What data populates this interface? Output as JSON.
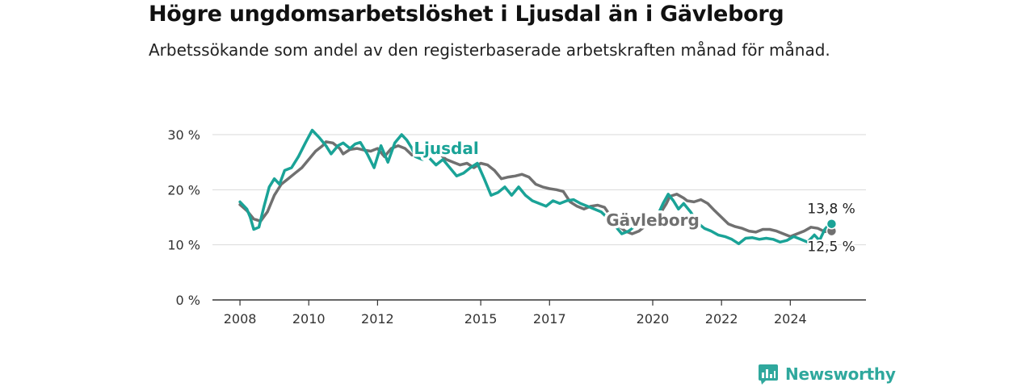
{
  "title": "Högre ungdomsarbetslöshet i Ljusdal än i Gävleborg",
  "subtitle": "Arbetssökande som andel av den registerbaserade arbetskraften månad för månad.",
  "brand": {
    "name": "Newsworthy",
    "color": "#2fa89d"
  },
  "chart_data": {
    "type": "line",
    "x_unit": "year (decimal)",
    "xlim": [
      2007.2,
      2026.2
    ],
    "ylim": [
      0,
      30
    ],
    "y_ticks": [
      0,
      10,
      20,
      30
    ],
    "y_tick_labels": [
      "0 %",
      "10 %",
      "20 %",
      "30 %"
    ],
    "x_ticks": [
      2008,
      2010,
      2012,
      2015,
      2017,
      2020,
      2022,
      2024
    ],
    "x_tick_labels": [
      "2008",
      "2010",
      "2012",
      "2015",
      "2017",
      "2020",
      "2022",
      "2024"
    ],
    "grid": true,
    "series": [
      {
        "name": "Gävleborg",
        "color": "#707070",
        "end_label": "12,5 %",
        "points": [
          [
            2008.0,
            17.3
          ],
          [
            2008.2,
            16.2
          ],
          [
            2008.4,
            14.7
          ],
          [
            2008.6,
            14.3
          ],
          [
            2008.8,
            16.0
          ],
          [
            2009.0,
            19.0
          ],
          [
            2009.2,
            21.0
          ],
          [
            2009.4,
            22.0
          ],
          [
            2009.6,
            23.0
          ],
          [
            2009.8,
            24.0
          ],
          [
            2010.0,
            25.5
          ],
          [
            2010.2,
            27.0
          ],
          [
            2010.4,
            28.0
          ],
          [
            2010.5,
            28.7
          ],
          [
            2010.7,
            28.5
          ],
          [
            2010.9,
            27.5
          ],
          [
            2011.0,
            26.5
          ],
          [
            2011.2,
            27.3
          ],
          [
            2011.4,
            27.5
          ],
          [
            2011.6,
            27.2
          ],
          [
            2011.8,
            27.0
          ],
          [
            2012.0,
            27.5
          ],
          [
            2012.2,
            26.0
          ],
          [
            2012.4,
            27.5
          ],
          [
            2012.6,
            28.0
          ],
          [
            2012.8,
            27.5
          ],
          [
            2013.0,
            26.3
          ],
          [
            2013.2,
            27.0
          ],
          [
            2013.5,
            27.5
          ],
          [
            2013.8,
            26.5
          ],
          [
            2014.0,
            25.5
          ],
          [
            2014.2,
            25.0
          ],
          [
            2014.4,
            24.5
          ],
          [
            2014.6,
            24.8
          ],
          [
            2014.8,
            24.0
          ],
          [
            2015.0,
            24.8
          ],
          [
            2015.2,
            24.5
          ],
          [
            2015.4,
            23.5
          ],
          [
            2015.6,
            22.0
          ],
          [
            2015.8,
            22.3
          ],
          [
            2016.0,
            22.5
          ],
          [
            2016.2,
            22.8
          ],
          [
            2016.4,
            22.3
          ],
          [
            2016.6,
            21.0
          ],
          [
            2016.8,
            20.5
          ],
          [
            2017.0,
            20.2
          ],
          [
            2017.2,
            20.0
          ],
          [
            2017.4,
            19.7
          ],
          [
            2017.6,
            17.8
          ],
          [
            2017.8,
            17.0
          ],
          [
            2018.0,
            16.5
          ],
          [
            2018.2,
            17.0
          ],
          [
            2018.4,
            17.2
          ],
          [
            2018.6,
            16.8
          ],
          [
            2018.8,
            15.0
          ],
          [
            2019.0,
            13.5
          ],
          [
            2019.2,
            12.5
          ],
          [
            2019.4,
            12.0
          ],
          [
            2019.6,
            12.5
          ],
          [
            2019.8,
            13.5
          ],
          [
            2020.0,
            14.2
          ],
          [
            2020.2,
            15.5
          ],
          [
            2020.4,
            17.5
          ],
          [
            2020.5,
            18.8
          ],
          [
            2020.7,
            19.2
          ],
          [
            2020.9,
            18.5
          ],
          [
            2021.0,
            18.0
          ],
          [
            2021.2,
            17.8
          ],
          [
            2021.4,
            18.2
          ],
          [
            2021.6,
            17.5
          ],
          [
            2021.8,
            16.2
          ],
          [
            2022.0,
            15.0
          ],
          [
            2022.2,
            13.8
          ],
          [
            2022.4,
            13.3
          ],
          [
            2022.6,
            13.0
          ],
          [
            2022.8,
            12.5
          ],
          [
            2023.0,
            12.3
          ],
          [
            2023.2,
            12.8
          ],
          [
            2023.4,
            12.8
          ],
          [
            2023.6,
            12.5
          ],
          [
            2023.8,
            12.0
          ],
          [
            2024.0,
            11.5
          ],
          [
            2024.2,
            12.0
          ],
          [
            2024.4,
            12.5
          ],
          [
            2024.6,
            13.2
          ],
          [
            2024.8,
            13.0
          ],
          [
            2025.0,
            12.4
          ],
          [
            2025.2,
            12.5
          ]
        ]
      },
      {
        "name": "Ljusdal",
        "color": "#1aa397",
        "end_label": "13,8 %",
        "points": [
          [
            2008.0,
            17.8
          ],
          [
            2008.2,
            16.5
          ],
          [
            2008.3,
            15.0
          ],
          [
            2008.4,
            12.8
          ],
          [
            2008.55,
            13.2
          ],
          [
            2008.7,
            17.0
          ],
          [
            2008.85,
            20.5
          ],
          [
            2009.0,
            22.0
          ],
          [
            2009.15,
            21.0
          ],
          [
            2009.3,
            23.5
          ],
          [
            2009.5,
            24.0
          ],
          [
            2009.7,
            26.0
          ],
          [
            2009.9,
            28.5
          ],
          [
            2010.1,
            30.8
          ],
          [
            2010.3,
            29.5
          ],
          [
            2010.5,
            28.0
          ],
          [
            2010.65,
            26.5
          ],
          [
            2010.85,
            28.0
          ],
          [
            2011.0,
            28.5
          ],
          [
            2011.2,
            27.5
          ],
          [
            2011.35,
            28.3
          ],
          [
            2011.5,
            28.6
          ],
          [
            2011.7,
            26.5
          ],
          [
            2011.9,
            24.0
          ],
          [
            2012.1,
            28.0
          ],
          [
            2012.3,
            25.0
          ],
          [
            2012.5,
            28.5
          ],
          [
            2012.7,
            30.0
          ],
          [
            2012.85,
            29.0
          ],
          [
            2013.0,
            27.5
          ],
          [
            2013.1,
            26.0
          ],
          [
            2013.3,
            25.5
          ],
          [
            2013.5,
            25.8
          ],
          [
            2013.7,
            24.5
          ],
          [
            2013.9,
            25.5
          ],
          [
            2014.1,
            24.0
          ],
          [
            2014.3,
            22.5
          ],
          [
            2014.5,
            23.0
          ],
          [
            2014.7,
            24.0
          ],
          [
            2014.9,
            24.8
          ],
          [
            2015.1,
            22.0
          ],
          [
            2015.3,
            19.0
          ],
          [
            2015.5,
            19.5
          ],
          [
            2015.7,
            20.5
          ],
          [
            2015.9,
            19.0
          ],
          [
            2016.1,
            20.5
          ],
          [
            2016.3,
            19.0
          ],
          [
            2016.5,
            18.0
          ],
          [
            2016.7,
            17.5
          ],
          [
            2016.9,
            17.0
          ],
          [
            2017.1,
            18.0
          ],
          [
            2017.3,
            17.5
          ],
          [
            2017.5,
            18.0
          ],
          [
            2017.7,
            18.2
          ],
          [
            2017.9,
            17.5
          ],
          [
            2018.1,
            17.0
          ],
          [
            2018.3,
            16.5
          ],
          [
            2018.5,
            16.0
          ],
          [
            2018.7,
            14.8
          ],
          [
            2018.9,
            13.5
          ],
          [
            2019.1,
            12.0
          ],
          [
            2019.3,
            12.5
          ],
          [
            2019.5,
            13.5
          ],
          [
            2019.7,
            14.5
          ],
          [
            2019.9,
            15.0
          ],
          [
            2020.1,
            14.8
          ],
          [
            2020.3,
            17.5
          ],
          [
            2020.45,
            19.2
          ],
          [
            2020.6,
            18.0
          ],
          [
            2020.75,
            16.5
          ],
          [
            2020.9,
            17.5
          ],
          [
            2021.1,
            16.0
          ],
          [
            2021.3,
            14.0
          ],
          [
            2021.5,
            13.0
          ],
          [
            2021.7,
            12.5
          ],
          [
            2021.9,
            11.8
          ],
          [
            2022.1,
            11.5
          ],
          [
            2022.3,
            11.0
          ],
          [
            2022.5,
            10.2
          ],
          [
            2022.7,
            11.2
          ],
          [
            2022.9,
            11.3
          ],
          [
            2023.1,
            11.0
          ],
          [
            2023.3,
            11.2
          ],
          [
            2023.5,
            11.0
          ],
          [
            2023.7,
            10.5
          ],
          [
            2023.9,
            10.8
          ],
          [
            2024.1,
            11.5
          ],
          [
            2024.3,
            11.0
          ],
          [
            2024.5,
            10.5
          ],
          [
            2024.7,
            11.8
          ],
          [
            2024.85,
            10.8
          ],
          [
            2025.0,
            12.8
          ],
          [
            2025.1,
            13.5
          ],
          [
            2025.2,
            13.8
          ]
        ]
      }
    ],
    "annotations": [
      {
        "text": "Ljusdal",
        "series": "Ljusdal",
        "x": 2014.0,
        "y": 26.5
      },
      {
        "text": "Gävleborg",
        "series": "Gävleborg",
        "x": 2020.0,
        "y": 13.5
      }
    ]
  }
}
